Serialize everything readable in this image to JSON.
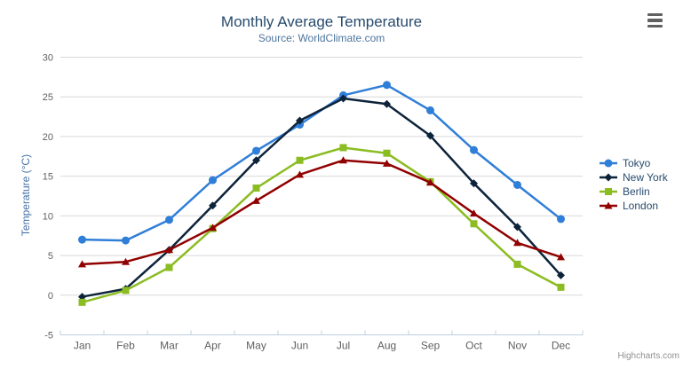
{
  "title": "Monthly Average Temperature",
  "subtitle": "Source: WorldClimate.com",
  "credit": "Highcharts.com",
  "export_menu": {
    "icon": "hamburger-icon"
  },
  "chart_data": {
    "type": "line",
    "title": "Monthly Average Temperature",
    "subtitle": "Source: WorldClimate.com",
    "categories": [
      "Jan",
      "Feb",
      "Mar",
      "Apr",
      "May",
      "Jun",
      "Jul",
      "Aug",
      "Sep",
      "Oct",
      "Nov",
      "Dec"
    ],
    "series": [
      {
        "name": "Tokyo",
        "color": "#2f7ed8",
        "marker": "circle",
        "values": [
          7.0,
          6.9,
          9.5,
          14.5,
          18.2,
          21.5,
          25.2,
          26.5,
          23.3,
          18.3,
          13.9,
          9.6
        ]
      },
      {
        "name": "New York",
        "color": "#0d233a",
        "marker": "diamond",
        "values": [
          -0.2,
          0.8,
          5.7,
          11.3,
          17.0,
          22.0,
          24.8,
          24.1,
          20.1,
          14.1,
          8.6,
          2.5
        ]
      },
      {
        "name": "Berlin",
        "color": "#8bbc21",
        "marker": "square",
        "values": [
          -0.9,
          0.6,
          3.5,
          8.4,
          13.5,
          17.0,
          18.6,
          17.9,
          14.3,
          9.0,
          3.9,
          1.0
        ]
      },
      {
        "name": "London",
        "color": "#910000",
        "marker": "triangle",
        "values": [
          3.9,
          4.2,
          5.7,
          8.5,
          11.9,
          15.2,
          17.0,
          16.6,
          14.2,
          10.3,
          6.6,
          4.8
        ]
      }
    ],
    "xlabel": "",
    "ylabel": "Temperature (°C)",
    "ylim": [
      -5,
      30
    ],
    "ytick_interval": 5,
    "grid": true,
    "legend_position": "right"
  },
  "styles": {
    "background": "#ffffff",
    "grid_color": "#d8d8d8",
    "axis_line_color": "#c0d0e0",
    "tick_color": "#c0d0e0",
    "axis_label_color": "#606060",
    "title_color": "#274b6d",
    "subtitle_color": "#4d759e",
    "y_title_color": "#4572a7",
    "legend_text_color": "#274b6d",
    "credit_color": "#909090",
    "menu_icon_color": "#606060"
  }
}
